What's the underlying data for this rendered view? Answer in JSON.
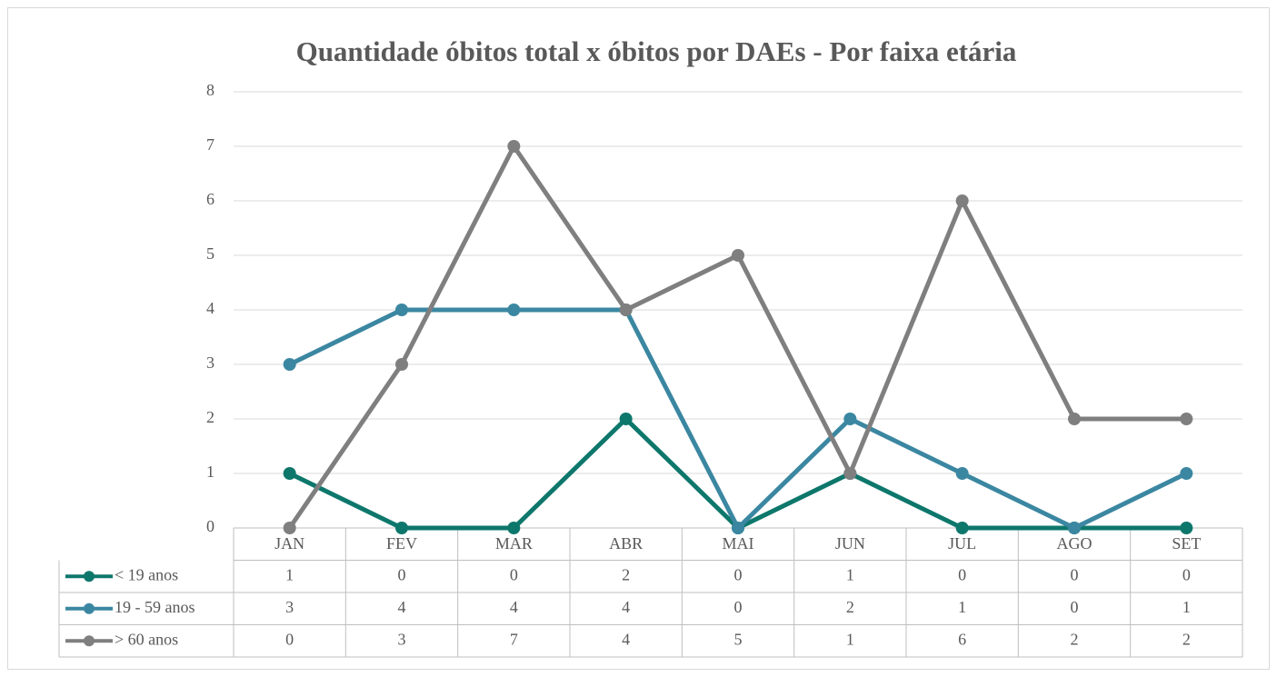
{
  "chart_data": {
    "type": "line",
    "title": "Quantidade óbitos total x óbitos por DAEs - Por faixa etária",
    "categories": [
      "JAN",
      "FEV",
      "MAR",
      "ABR",
      "MAI",
      "JUN",
      "JUL",
      "AGO",
      "SET"
    ],
    "series": [
      {
        "name": "< 19 anos",
        "color": "#0e776c",
        "values": [
          1,
          0,
          0,
          2,
          0,
          1,
          0,
          0,
          0
        ]
      },
      {
        "name": "19 - 59 anos",
        "color": "#3b87a1",
        "values": [
          3,
          4,
          4,
          4,
          0,
          2,
          1,
          0,
          1
        ]
      },
      {
        "name": "> 60 anos",
        "color": "#7f7f7f",
        "values": [
          0,
          3,
          7,
          4,
          5,
          1,
          6,
          2,
          2
        ]
      }
    ],
    "ylim": [
      0,
      8
    ],
    "yticks": [
      0,
      1,
      2,
      3,
      4,
      5,
      6,
      7,
      8
    ],
    "grid": true,
    "data_table": true
  }
}
